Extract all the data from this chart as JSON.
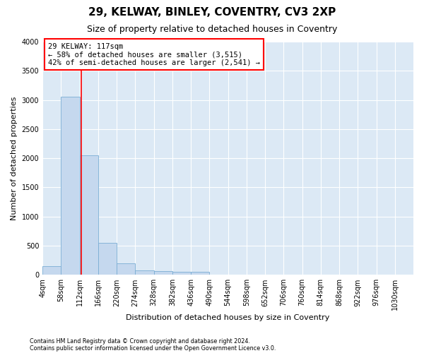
{
  "title1": "29, KELWAY, BINLEY, COVENTRY, CV3 2XP",
  "title2": "Size of property relative to detached houses in Coventry",
  "xlabel": "Distribution of detached houses by size in Coventry",
  "ylabel": "Number of detached properties",
  "annotation_line1": "29 KELWAY: 117sqm",
  "annotation_line2": "← 58% of detached houses are smaller (3,515)",
  "annotation_line3": "42% of semi-detached houses are larger (2,541) →",
  "bar_edges": [
    4,
    58,
    112,
    166,
    220,
    274,
    328,
    382,
    436,
    490,
    544,
    598,
    652,
    706,
    760,
    814,
    868,
    922,
    976,
    1030,
    1084
  ],
  "bar_heights": [
    150,
    3050,
    2050,
    550,
    200,
    80,
    70,
    50,
    50,
    0,
    0,
    0,
    0,
    0,
    0,
    0,
    0,
    0,
    0,
    0
  ],
  "bar_color": "#c5d8ee",
  "bar_edge_color": "#7aadd4",
  "vline_color": "red",
  "vline_x": 117,
  "background_color": "#dce9f5",
  "grid_color": "white",
  "ylim": [
    0,
    4000
  ],
  "yticks": [
    0,
    500,
    1000,
    1500,
    2000,
    2500,
    3000,
    3500,
    4000
  ],
  "footnote1": "Contains HM Land Registry data © Crown copyright and database right 2024.",
  "footnote2": "Contains public sector information licensed under the Open Government Licence v3.0.",
  "title1_fontsize": 11,
  "title2_fontsize": 9,
  "tick_fontsize": 7,
  "label_fontsize": 8,
  "annotation_fontsize": 7.5
}
